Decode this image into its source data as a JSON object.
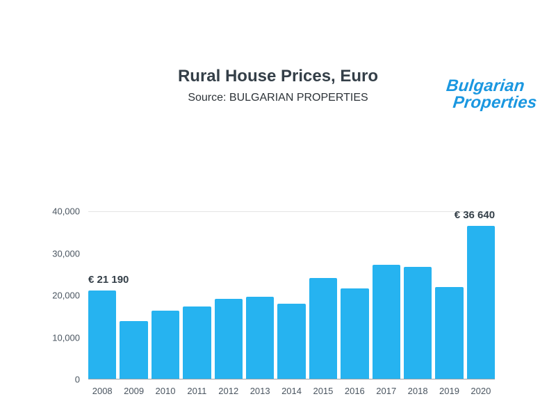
{
  "brand": {
    "line1": "Bulgarian",
    "line2": "Properties",
    "color": "#1a97e0"
  },
  "header": {
    "title": "Rural House Prices, Euro",
    "subtitle": "Source: BULGARIAN PROPERTIES"
  },
  "chart_data": {
    "type": "bar",
    "title": "Rural House Prices, Euro",
    "subtitle": "Source: BULGARIAN PROPERTIES",
    "categories": [
      "2008",
      "2009",
      "2010",
      "2011",
      "2012",
      "2013",
      "2014",
      "2015",
      "2016",
      "2017",
      "2018",
      "2019",
      "2020"
    ],
    "values": [
      21190,
      13900,
      16300,
      17400,
      19200,
      19600,
      18000,
      24100,
      21700,
      27400,
      26900,
      22000,
      36640
    ],
    "xlabel": "",
    "ylabel": "",
    "ylim": [
      0,
      40000
    ],
    "yticks": [
      0,
      10000,
      20000,
      30000,
      40000
    ],
    "ytick_labels": [
      "0",
      "10,000",
      "20,000",
      "30,000",
      "40,000"
    ],
    "bar_color": "#26b3f0",
    "grid": "top-line-and-baseline-only",
    "legend": false,
    "annotations": [
      {
        "index": 0,
        "text": "€ 21 190",
        "align": "left"
      },
      {
        "index": 12,
        "text": "€ 36 640",
        "align": "right"
      }
    ]
  }
}
